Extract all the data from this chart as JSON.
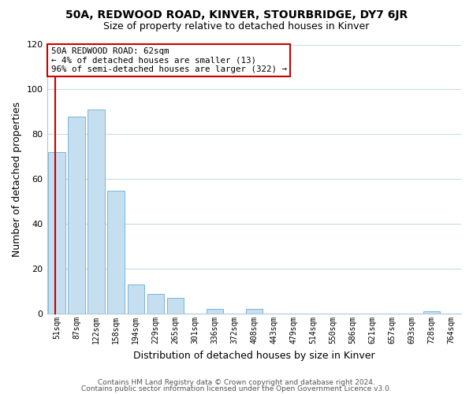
{
  "title_line1": "50A, REDWOOD ROAD, KINVER, STOURBRIDGE, DY7 6JR",
  "title_line2": "Size of property relative to detached houses in Kinver",
  "xlabel": "Distribution of detached houses by size in Kinver",
  "ylabel": "Number of detached properties",
  "bar_labels": [
    "51sqm",
    "87sqm",
    "122sqm",
    "158sqm",
    "194sqm",
    "229sqm",
    "265sqm",
    "301sqm",
    "336sqm",
    "372sqm",
    "408sqm",
    "443sqm",
    "479sqm",
    "514sqm",
    "550sqm",
    "586sqm",
    "621sqm",
    "657sqm",
    "693sqm",
    "728sqm",
    "764sqm"
  ],
  "bar_values": [
    72,
    88,
    91,
    55,
    13,
    9,
    7,
    0,
    2,
    0,
    2,
    0,
    0,
    0,
    0,
    0,
    0,
    0,
    0,
    1,
    0
  ],
  "bar_color": "#c5dff0",
  "bar_edge_color": "#7ab5d8",
  "annotation_box_text": "50A REDWOOD ROAD: 62sqm\n← 4% of detached houses are smaller (13)\n96% of semi-detached houses are larger (322) →",
  "annotation_box_color": "#ffffff",
  "annotation_box_edge_color": "#cc0000",
  "vertical_line_color": "#cc0000",
  "ylim": [
    0,
    120
  ],
  "yticks": [
    0,
    20,
    40,
    60,
    80,
    100,
    120
  ],
  "footer_line1": "Contains HM Land Registry data © Crown copyright and database right 2024.",
  "footer_line2": "Contains public sector information licensed under the Open Government Licence v3.0.",
  "background_color": "#ffffff",
  "grid_color": "#c8dce8",
  "vline_x": -0.08
}
